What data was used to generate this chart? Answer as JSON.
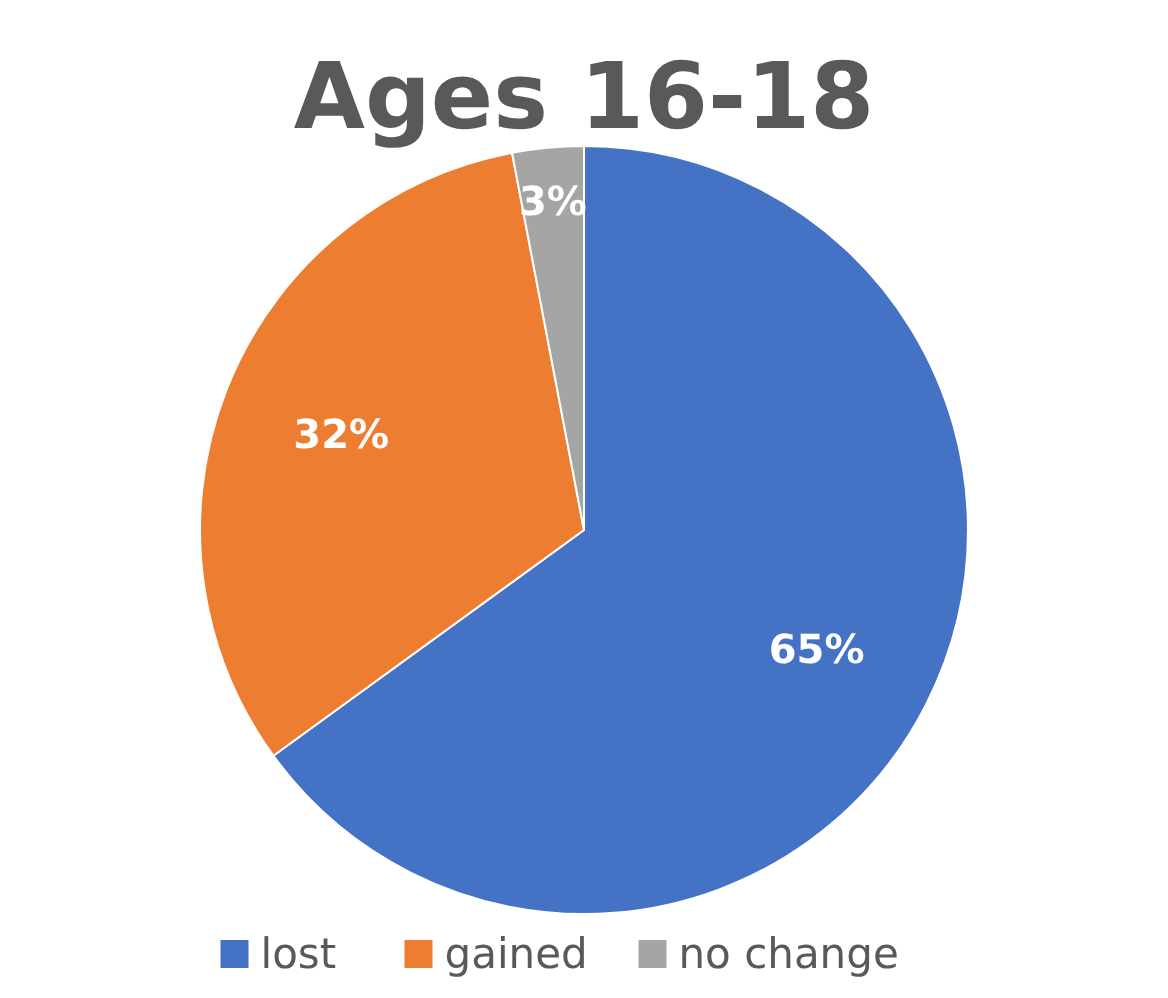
{
  "chart_data": {
    "type": "pie",
    "title": "Ages 16-18",
    "categories": [
      "lost",
      "gained",
      "no change"
    ],
    "values": [
      65,
      32,
      3
    ],
    "colors": [
      "#4472c4",
      "#ed7d31",
      "#a5a5a5"
    ],
    "value_labels": [
      "65%",
      "32%",
      "3%"
    ],
    "legend": "bottom"
  }
}
